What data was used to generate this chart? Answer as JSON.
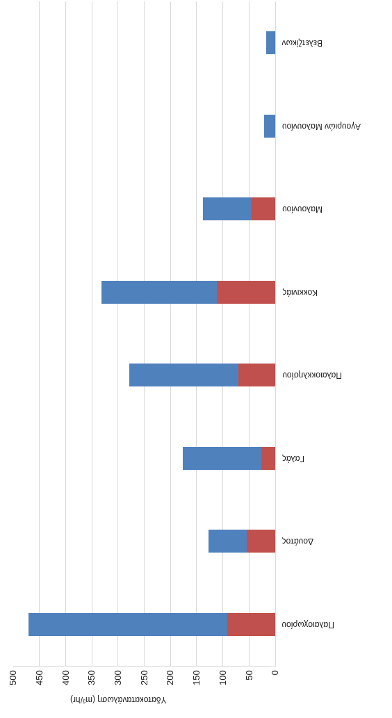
{
  "chart_data": {
    "type": "bar",
    "orientation": "horizontal",
    "stacked": true,
    "xlabel": "Υδατοκατανάλωση (m³/hr)",
    "categories": [
      "Βελετζίκων",
      "Αγουριών Μαλουνίου",
      "Μαλουνίου",
      "Κοκκινιάς",
      "Παλαιοκκλησίου",
      "Γαλάς",
      "Δουάτος",
      "Παλαιοχωρίου"
    ],
    "series": [
      {
        "color": "#c0504d",
        "values": [
          0,
          0,
          45,
          112,
          70,
          26,
          54,
          92
        ]
      },
      {
        "color": "#4f81bd",
        "values": [
          17,
          21,
          93,
          220,
          208,
          150,
          73,
          379
        ]
      }
    ],
    "xlim": [
      500,
      0
    ],
    "xticks": [
      0,
      50,
      100,
      150,
      200,
      250,
      300,
      350,
      400,
      450,
      500
    ],
    "grid": "x"
  }
}
